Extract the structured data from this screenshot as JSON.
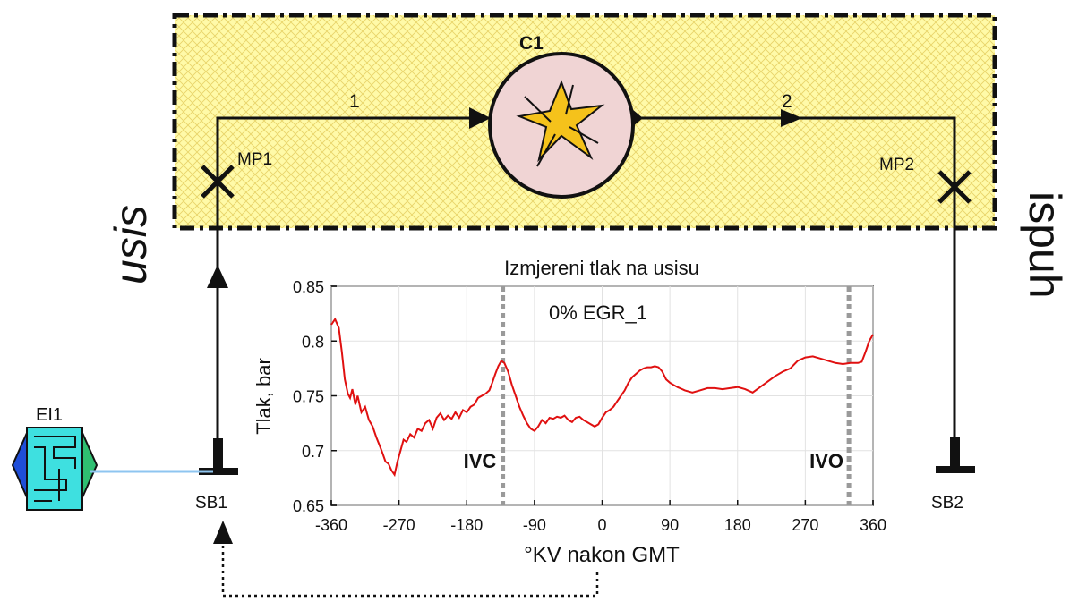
{
  "diagram": {
    "compressor_label": "C1",
    "pipe1_label": "1",
    "pipe2_label": "2",
    "mp1_label": "MP1",
    "mp2_label": "MP2",
    "sb1_label": "SB1",
    "sb2_label": "SB2",
    "ei1_label": "EI1",
    "intake_label": "usis",
    "exhaust_label": "ispuh",
    "colors": {
      "box_fill": "#fffaa8",
      "box_hatch": "#e8d46a",
      "compressor_fill": "#f0d4d4",
      "spark": "#f5c21b",
      "signal_line": "#8ec5f0",
      "engine_cyan": "#3ee0e0",
      "engine_blue": "#1f4ed8",
      "engine_green": "#2fbf71"
    }
  },
  "chart_data": {
    "type": "line",
    "title": "Izmjereni tlak na usisu",
    "annotation": "0% EGR_1",
    "xlabel": "°KV nakon GMT",
    "ylabel": "Tlak, bar",
    "xlim": [
      -360,
      360
    ],
    "ylim": [
      0.65,
      0.85
    ],
    "xticks": [
      -360,
      -270,
      -180,
      -90,
      0,
      90,
      180,
      270,
      360
    ],
    "yticks": [
      0.65,
      0.7,
      0.75,
      0.8,
      0.85
    ],
    "ytick_labels": [
      "0.65",
      "0.7",
      "0.75",
      "0.8",
      "0.85"
    ],
    "grid": true,
    "color": "#e01010",
    "vlines": [
      {
        "x": -132,
        "label": "IVC"
      },
      {
        "x": 328,
        "label": "IVO"
      }
    ],
    "series": [
      {
        "x": [
          -360,
          -355,
          -350,
          -346,
          -342,
          -338,
          -335,
          -332,
          -328,
          -325,
          -320,
          -315,
          -310,
          -305,
          -300,
          -296,
          -292,
          -288,
          -284,
          -280,
          -276,
          -272,
          -268,
          -264,
          -260,
          -255,
          -250,
          -245,
          -240,
          -235,
          -230,
          -225,
          -220,
          -215,
          -210,
          -205,
          -200,
          -195,
          -190,
          -185,
          -180,
          -175,
          -170,
          -165,
          -160,
          -155,
          -150,
          -146,
          -142,
          -138,
          -134,
          -130,
          -125,
          -120,
          -115,
          -110,
          -105,
          -100,
          -95,
          -90,
          -85,
          -80,
          -75,
          -70,
          -65,
          -60,
          -55,
          -50,
          -45,
          -40,
          -35,
          -30,
          -25,
          -20,
          -15,
          -10,
          -5,
          0,
          5,
          10,
          15,
          20,
          25,
          30,
          35,
          40,
          45,
          50,
          55,
          60,
          65,
          70,
          75,
          80,
          85,
          90,
          95,
          100,
          110,
          120,
          130,
          140,
          150,
          160,
          170,
          180,
          190,
          200,
          210,
          220,
          230,
          240,
          250,
          260,
          270,
          280,
          290,
          300,
          310,
          320,
          330,
          340,
          345,
          350,
          355,
          360
        ],
        "y": [
          0.815,
          0.82,
          0.812,
          0.79,
          0.765,
          0.752,
          0.748,
          0.756,
          0.742,
          0.75,
          0.735,
          0.74,
          0.728,
          0.722,
          0.712,
          0.705,
          0.698,
          0.69,
          0.688,
          0.682,
          0.678,
          0.69,
          0.7,
          0.71,
          0.708,
          0.715,
          0.712,
          0.72,
          0.718,
          0.725,
          0.728,
          0.72,
          0.73,
          0.734,
          0.728,
          0.732,
          0.729,
          0.735,
          0.73,
          0.737,
          0.735,
          0.74,
          0.742,
          0.748,
          0.75,
          0.752,
          0.755,
          0.762,
          0.77,
          0.777,
          0.782,
          0.78,
          0.772,
          0.76,
          0.75,
          0.74,
          0.732,
          0.725,
          0.72,
          0.718,
          0.722,
          0.728,
          0.725,
          0.73,
          0.729,
          0.731,
          0.73,
          0.732,
          0.728,
          0.726,
          0.73,
          0.731,
          0.728,
          0.726,
          0.724,
          0.722,
          0.724,
          0.73,
          0.735,
          0.737,
          0.74,
          0.745,
          0.75,
          0.755,
          0.762,
          0.767,
          0.77,
          0.773,
          0.775,
          0.776,
          0.776,
          0.777,
          0.776,
          0.772,
          0.765,
          0.762,
          0.76,
          0.758,
          0.755,
          0.753,
          0.755,
          0.757,
          0.757,
          0.756,
          0.757,
          0.758,
          0.756,
          0.753,
          0.758,
          0.763,
          0.768,
          0.772,
          0.775,
          0.782,
          0.785,
          0.786,
          0.784,
          0.782,
          0.78,
          0.779,
          0.78,
          0.78,
          0.781,
          0.79,
          0.8,
          0.806
        ]
      }
    ]
  }
}
